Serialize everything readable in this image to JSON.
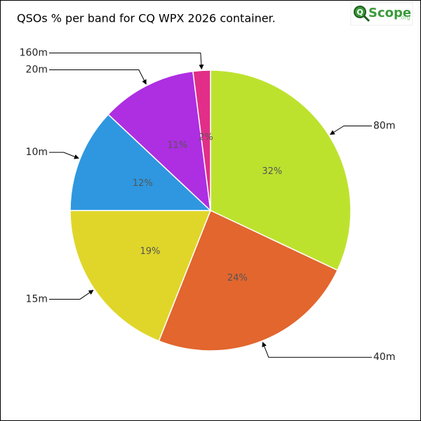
{
  "chart_data": {
    "type": "pie",
    "title": "QSOs % per band for CQ WPX 2026 container.",
    "categories": [
      "80m",
      "40m",
      "15m",
      "10m",
      "20m",
      "160m"
    ],
    "values": [
      32,
      24,
      19,
      12,
      11,
      2
    ],
    "value_labels": [
      "32%",
      "24%",
      "19%",
      "12%",
      "11%",
      "2%"
    ],
    "colors": [
      "#bde22e",
      "#e2662e",
      "#e0d62a",
      "#2e97e0",
      "#ae2ee2",
      "#e22e88"
    ]
  },
  "logo": {
    "mark": "Q",
    "name": "Scope",
    "suffix": ".org"
  }
}
